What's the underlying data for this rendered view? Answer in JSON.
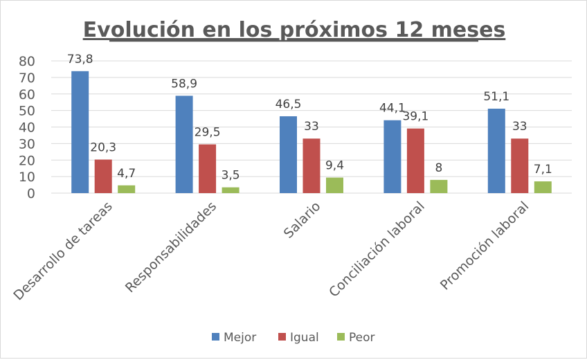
{
  "chart_data": {
    "type": "bar",
    "title": "Evolución en los próximos 12 meses",
    "categories": [
      "Desarrollo de tareas",
      "Responsabilidades",
      "Salario",
      "Conciliación laboral",
      "Promoción laboral"
    ],
    "series": [
      {
        "name": "Mejor",
        "color": "#4f81bd",
        "values": [
          73.8,
          58.9,
          46.5,
          44.1,
          51.1
        ],
        "labels": [
          "73,8",
          "58,9",
          "46,5",
          "44,1",
          "51,1"
        ]
      },
      {
        "name": "Igual",
        "color": "#c0504d",
        "values": [
          20.3,
          29.5,
          33,
          39.1,
          33
        ],
        "labels": [
          "20,3",
          "29,5",
          "33",
          "39,1",
          "33"
        ]
      },
      {
        "name": "Peor",
        "color": "#9bbb59",
        "values": [
          4.7,
          3.5,
          9.4,
          8,
          7.1
        ],
        "labels": [
          "4,7",
          "3,5",
          "9,4",
          "8",
          "7,1"
        ]
      }
    ],
    "ylim": [
      0,
      80
    ],
    "yticks": [
      "0",
      "10",
      "20",
      "30",
      "40",
      "50",
      "60",
      "70",
      "80"
    ],
    "grid": true,
    "legend": "bottom",
    "xlabel": "",
    "ylabel": ""
  }
}
